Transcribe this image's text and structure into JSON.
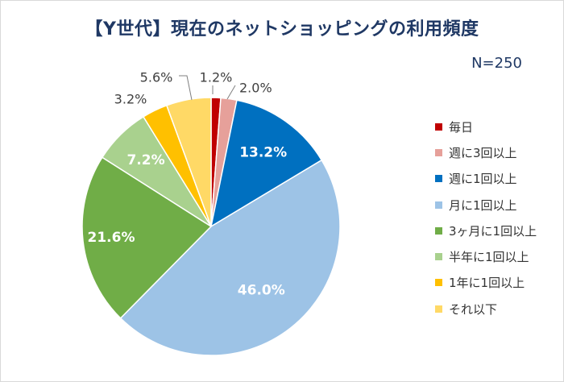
{
  "chart_data": {
    "type": "pie",
    "title": "【Y世代】現在のネットショッピングの利用頻度",
    "note": "N=250",
    "categories": [
      "毎日",
      "週に3回以上",
      "週に1回以上",
      "月に1回以上",
      "3ヶ月に1回以上",
      "半年に1回以上",
      "1年に1回以上",
      "それ以下"
    ],
    "values": [
      1.2,
      2.0,
      13.2,
      46.0,
      21.6,
      7.2,
      3.2,
      5.6
    ],
    "labels": [
      "1.2%",
      "2.0%",
      "13.2%",
      "46.0%",
      "21.6%",
      "7.2%",
      "3.2%",
      "5.6%"
    ],
    "colors": [
      "#c00000",
      "#e6a09a",
      "#0070c0",
      "#9dc3e6",
      "#70ad47",
      "#a9d18e",
      "#ffc000",
      "#ffd966"
    ],
    "legend_position": "right"
  }
}
